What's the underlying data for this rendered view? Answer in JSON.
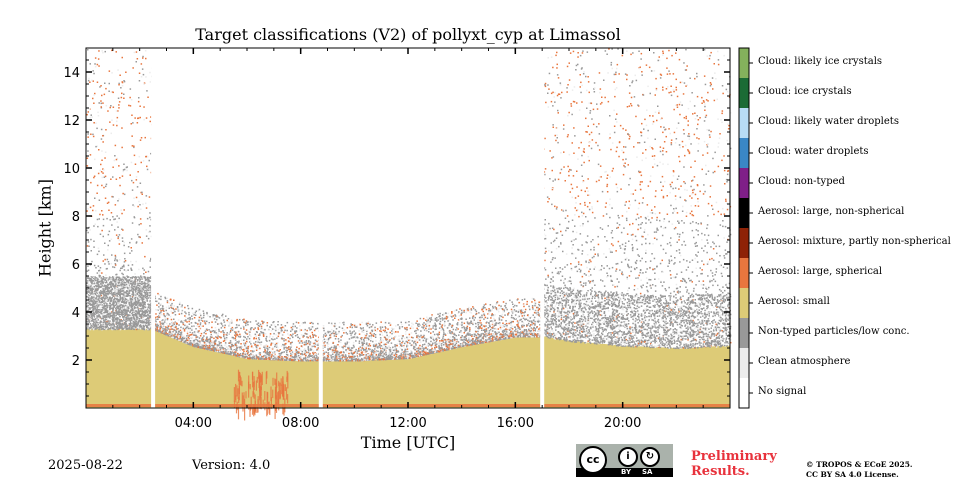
{
  "chart_data": {
    "type": "heatmap",
    "title": "Target classifications (V2) of pollyxt_cyp at Limassol",
    "xlabel": "Time [UTC]",
    "ylabel": "Height [km]",
    "xlim": [
      "00:00",
      "24:00"
    ],
    "ylim": [
      0,
      15
    ],
    "x_ticks": [
      "04:00",
      "08:00",
      "12:00",
      "16:00",
      "20:00"
    ],
    "y_ticks": [
      2,
      4,
      6,
      8,
      10,
      12,
      14
    ],
    "colorbar": [
      {
        "label": "Cloud: likely ice crystals",
        "color": "#84b15c"
      },
      {
        "label": "Cloud: ice crystals",
        "color": "#1b6b35"
      },
      {
        "label": "Cloud: likely water droplets",
        "color": "#b8dcf5"
      },
      {
        "label": "Cloud: water droplets",
        "color": "#3a87c6"
      },
      {
        "label": "Cloud: non-typed",
        "color": "#7f1f88"
      },
      {
        "label": "Aerosol: large, non-spherical",
        "color": "#000000"
      },
      {
        "label": "Aerosol: mixture, partly non-spherical",
        "color": "#8e2206"
      },
      {
        "label": "Aerosol: large, spherical",
        "color": "#e8763e"
      },
      {
        "label": "Aerosol: small",
        "color": "#ddcb77"
      },
      {
        "label": "Non-typed particles/low conc.",
        "color": "#999999"
      },
      {
        "label": "Clean atmosphere",
        "color": "#ececec"
      },
      {
        "label": "No signal",
        "color": "#ffffff"
      }
    ],
    "aerosol_layer_top_km": [
      {
        "time": "00:00",
        "height": 3.3
      },
      {
        "time": "02:30",
        "height": 3.3
      },
      {
        "time": "04:00",
        "height": 2.6
      },
      {
        "time": "06:00",
        "height": 2.1
      },
      {
        "time": "08:00",
        "height": 2.0
      },
      {
        "time": "10:00",
        "height": 2.0
      },
      {
        "time": "12:00",
        "height": 2.1
      },
      {
        "time": "14:00",
        "height": 2.6
      },
      {
        "time": "16:00",
        "height": 3.0
      },
      {
        "time": "17:00",
        "height": 3.0
      },
      {
        "time": "18:00",
        "height": 2.8
      },
      {
        "time": "20:00",
        "height": 2.6
      },
      {
        "time": "22:00",
        "height": 2.5
      },
      {
        "time": "24:00",
        "height": 2.6
      }
    ],
    "no_signal_gaps": [
      "02:30",
      "08:45",
      "17:00"
    ]
  },
  "footer": {
    "date": "2025-08-22",
    "version": "Version: 4.0",
    "preliminary_line1": "Preliminary",
    "preliminary_line2": "Results.",
    "license_line1": "© TROPOS & ECoE 2025.",
    "license_line2": "CC BY SA 4.0 License.",
    "badge_cc": "cc",
    "badge_by": "BY",
    "badge_sa": "SA"
  }
}
